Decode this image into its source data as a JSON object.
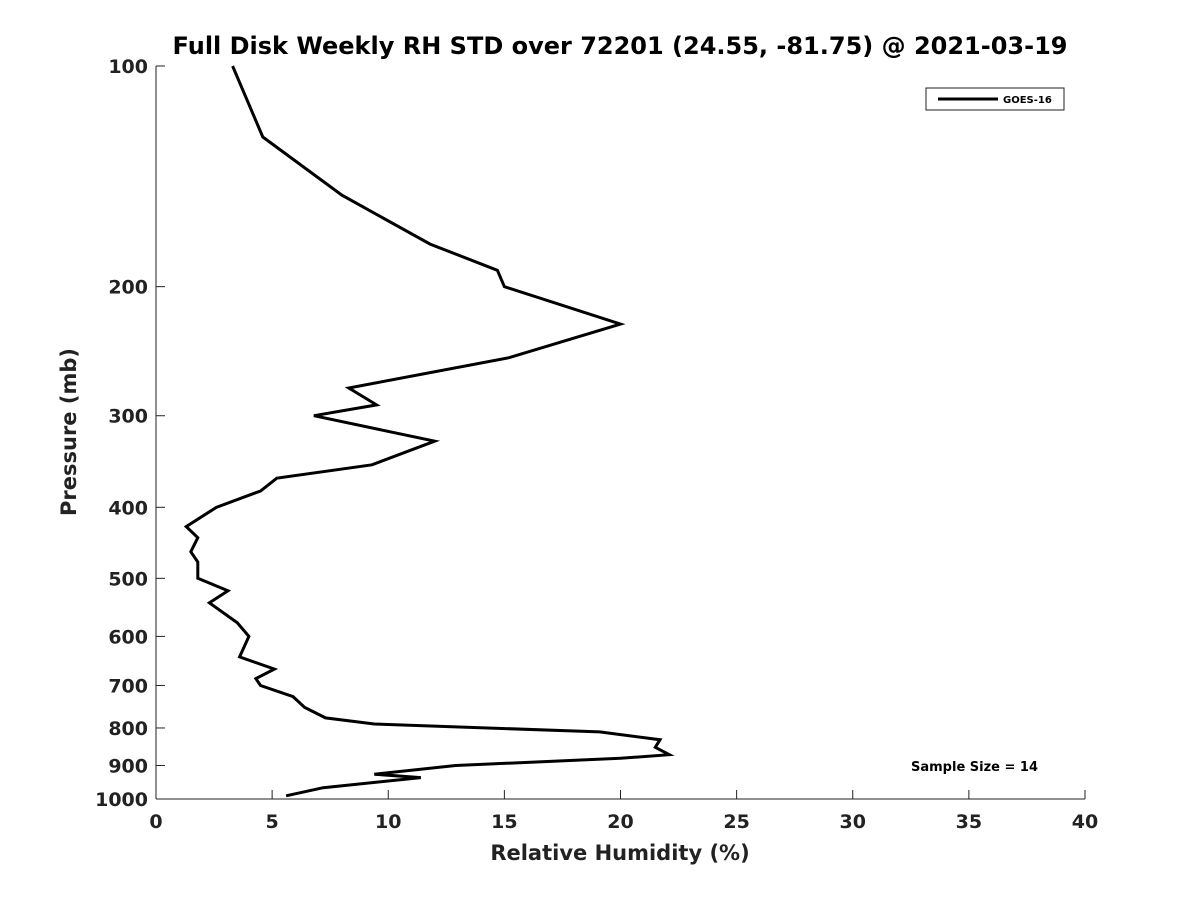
{
  "chart_data": {
    "type": "line",
    "title": "Full Disk Weekly RH STD over 72201 (24.55, -81.75) @ 2021-03-19",
    "xlabel": "Relative Humidity (%)",
    "ylabel": "Pressure (mb)",
    "xlim": [
      0,
      40
    ],
    "ylim": [
      100,
      1000
    ],
    "yscale": "log",
    "yreversed": true,
    "xticks": [
      0,
      5,
      10,
      15,
      20,
      25,
      30,
      35,
      40
    ],
    "yticks": [
      100,
      200,
      300,
      400,
      500,
      600,
      700,
      800,
      900,
      1000
    ],
    "xtick_labels": [
      "0",
      "5",
      "10",
      "15",
      "20",
      "25",
      "30",
      "35",
      "40"
    ],
    "ytick_labels": [
      "100",
      "200",
      "300",
      "400",
      "500",
      "600",
      "700",
      "800",
      "900",
      "1000"
    ],
    "grid": false,
    "legend_position": "top-right",
    "series": [
      {
        "name": "GOES-16",
        "color": "#000000",
        "points": [
          [
            3.3,
            100
          ],
          [
            4.6,
            125
          ],
          [
            8.0,
            150
          ],
          [
            11.8,
            175
          ],
          [
            14.7,
            190
          ],
          [
            15.0,
            200
          ],
          [
            20.0,
            225
          ],
          [
            15.2,
            250
          ],
          [
            8.3,
            275
          ],
          [
            9.5,
            290
          ],
          [
            6.8,
            300
          ],
          [
            12.0,
            325
          ],
          [
            9.3,
            350
          ],
          [
            5.2,
            365
          ],
          [
            4.5,
            380
          ],
          [
            2.6,
            400
          ],
          [
            1.3,
            425
          ],
          [
            1.8,
            440
          ],
          [
            1.5,
            460
          ],
          [
            1.8,
            475
          ],
          [
            1.8,
            500
          ],
          [
            3.1,
            520
          ],
          [
            2.3,
            540
          ],
          [
            3.5,
            575
          ],
          [
            4.0,
            600
          ],
          [
            3.6,
            640
          ],
          [
            5.1,
            665
          ],
          [
            4.3,
            685
          ],
          [
            4.5,
            700
          ],
          [
            5.9,
            725
          ],
          [
            6.4,
            750
          ],
          [
            7.3,
            775
          ],
          [
            9.4,
            790
          ],
          [
            19.1,
            810
          ],
          [
            21.7,
            830
          ],
          [
            21.5,
            850
          ],
          [
            22.1,
            870
          ],
          [
            20.0,
            880
          ],
          [
            12.9,
            900
          ],
          [
            9.4,
            925
          ],
          [
            11.4,
            935
          ],
          [
            7.2,
            965
          ],
          [
            5.6,
            990
          ]
        ]
      }
    ],
    "annotations": [
      {
        "text": "Sample Size = 14",
        "position": "bottom-right"
      }
    ]
  }
}
